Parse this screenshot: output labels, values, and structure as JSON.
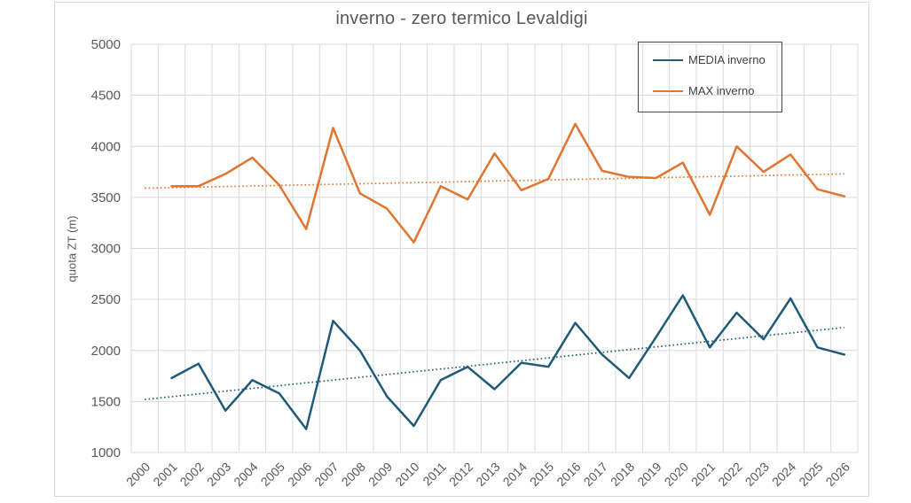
{
  "chart_data": {
    "type": "line",
    "title": "inverno - zero termico Levaldigi",
    "xlabel": "",
    "ylabel": "quota ZT (m)",
    "ylim": [
      1000,
      5000
    ],
    "ytick_interval": 500,
    "ytick_labels": [
      "1000",
      "1500",
      "2000",
      "2500",
      "3000",
      "3500",
      "4000",
      "4500",
      "5000"
    ],
    "categories": [
      "2000",
      "2001",
      "2002",
      "2003",
      "2004",
      "2005",
      "2006",
      "2007",
      "2008",
      "2009",
      "2010",
      "2011",
      "2012",
      "2013",
      "2014",
      "2015",
      "2016",
      "2017",
      "2018",
      "2019",
      "2020",
      "2021",
      "2022",
      "2023",
      "2024",
      "2025",
      "2026"
    ],
    "grid": true,
    "legend_position": "top-right",
    "series": [
      {
        "name": "MEDIA inverno",
        "color": "#1f5b78",
        "values": [
          null,
          1730,
          1870,
          1410,
          1710,
          1580,
          1230,
          2290,
          2000,
          1550,
          1260,
          1710,
          1840,
          1620,
          1880,
          1840,
          2270,
          1960,
          1730,
          2130,
          2540,
          2030,
          2370,
          2110,
          2510,
          2030,
          1960
        ]
      },
      {
        "name": "MAX inverno",
        "color": "#e1742f",
        "values": [
          null,
          3610,
          3610,
          3730,
          3890,
          3620,
          3190,
          4180,
          3540,
          3390,
          3060,
          3610,
          3480,
          3930,
          3570,
          3680,
          4220,
          3760,
          3700,
          3690,
          3840,
          3330,
          4000,
          3750,
          3920,
          3580,
          3510
        ]
      }
    ],
    "trendlines": [
      {
        "name": "MEDIA inverno trend",
        "color": "#1f5b78",
        "style": "dotted",
        "x_start": "2000",
        "x_end": "2026",
        "y_start": 1520,
        "y_end": 2225
      },
      {
        "name": "MAX inverno trend",
        "color": "#e1742f",
        "style": "dotted",
        "x_start": "2000",
        "x_end": "2026",
        "y_start": 3590,
        "y_end": 3730
      }
    ],
    "colors": {
      "text": "#595959",
      "gridline": "#d9d9d9",
      "legend_border": "#444444"
    }
  }
}
